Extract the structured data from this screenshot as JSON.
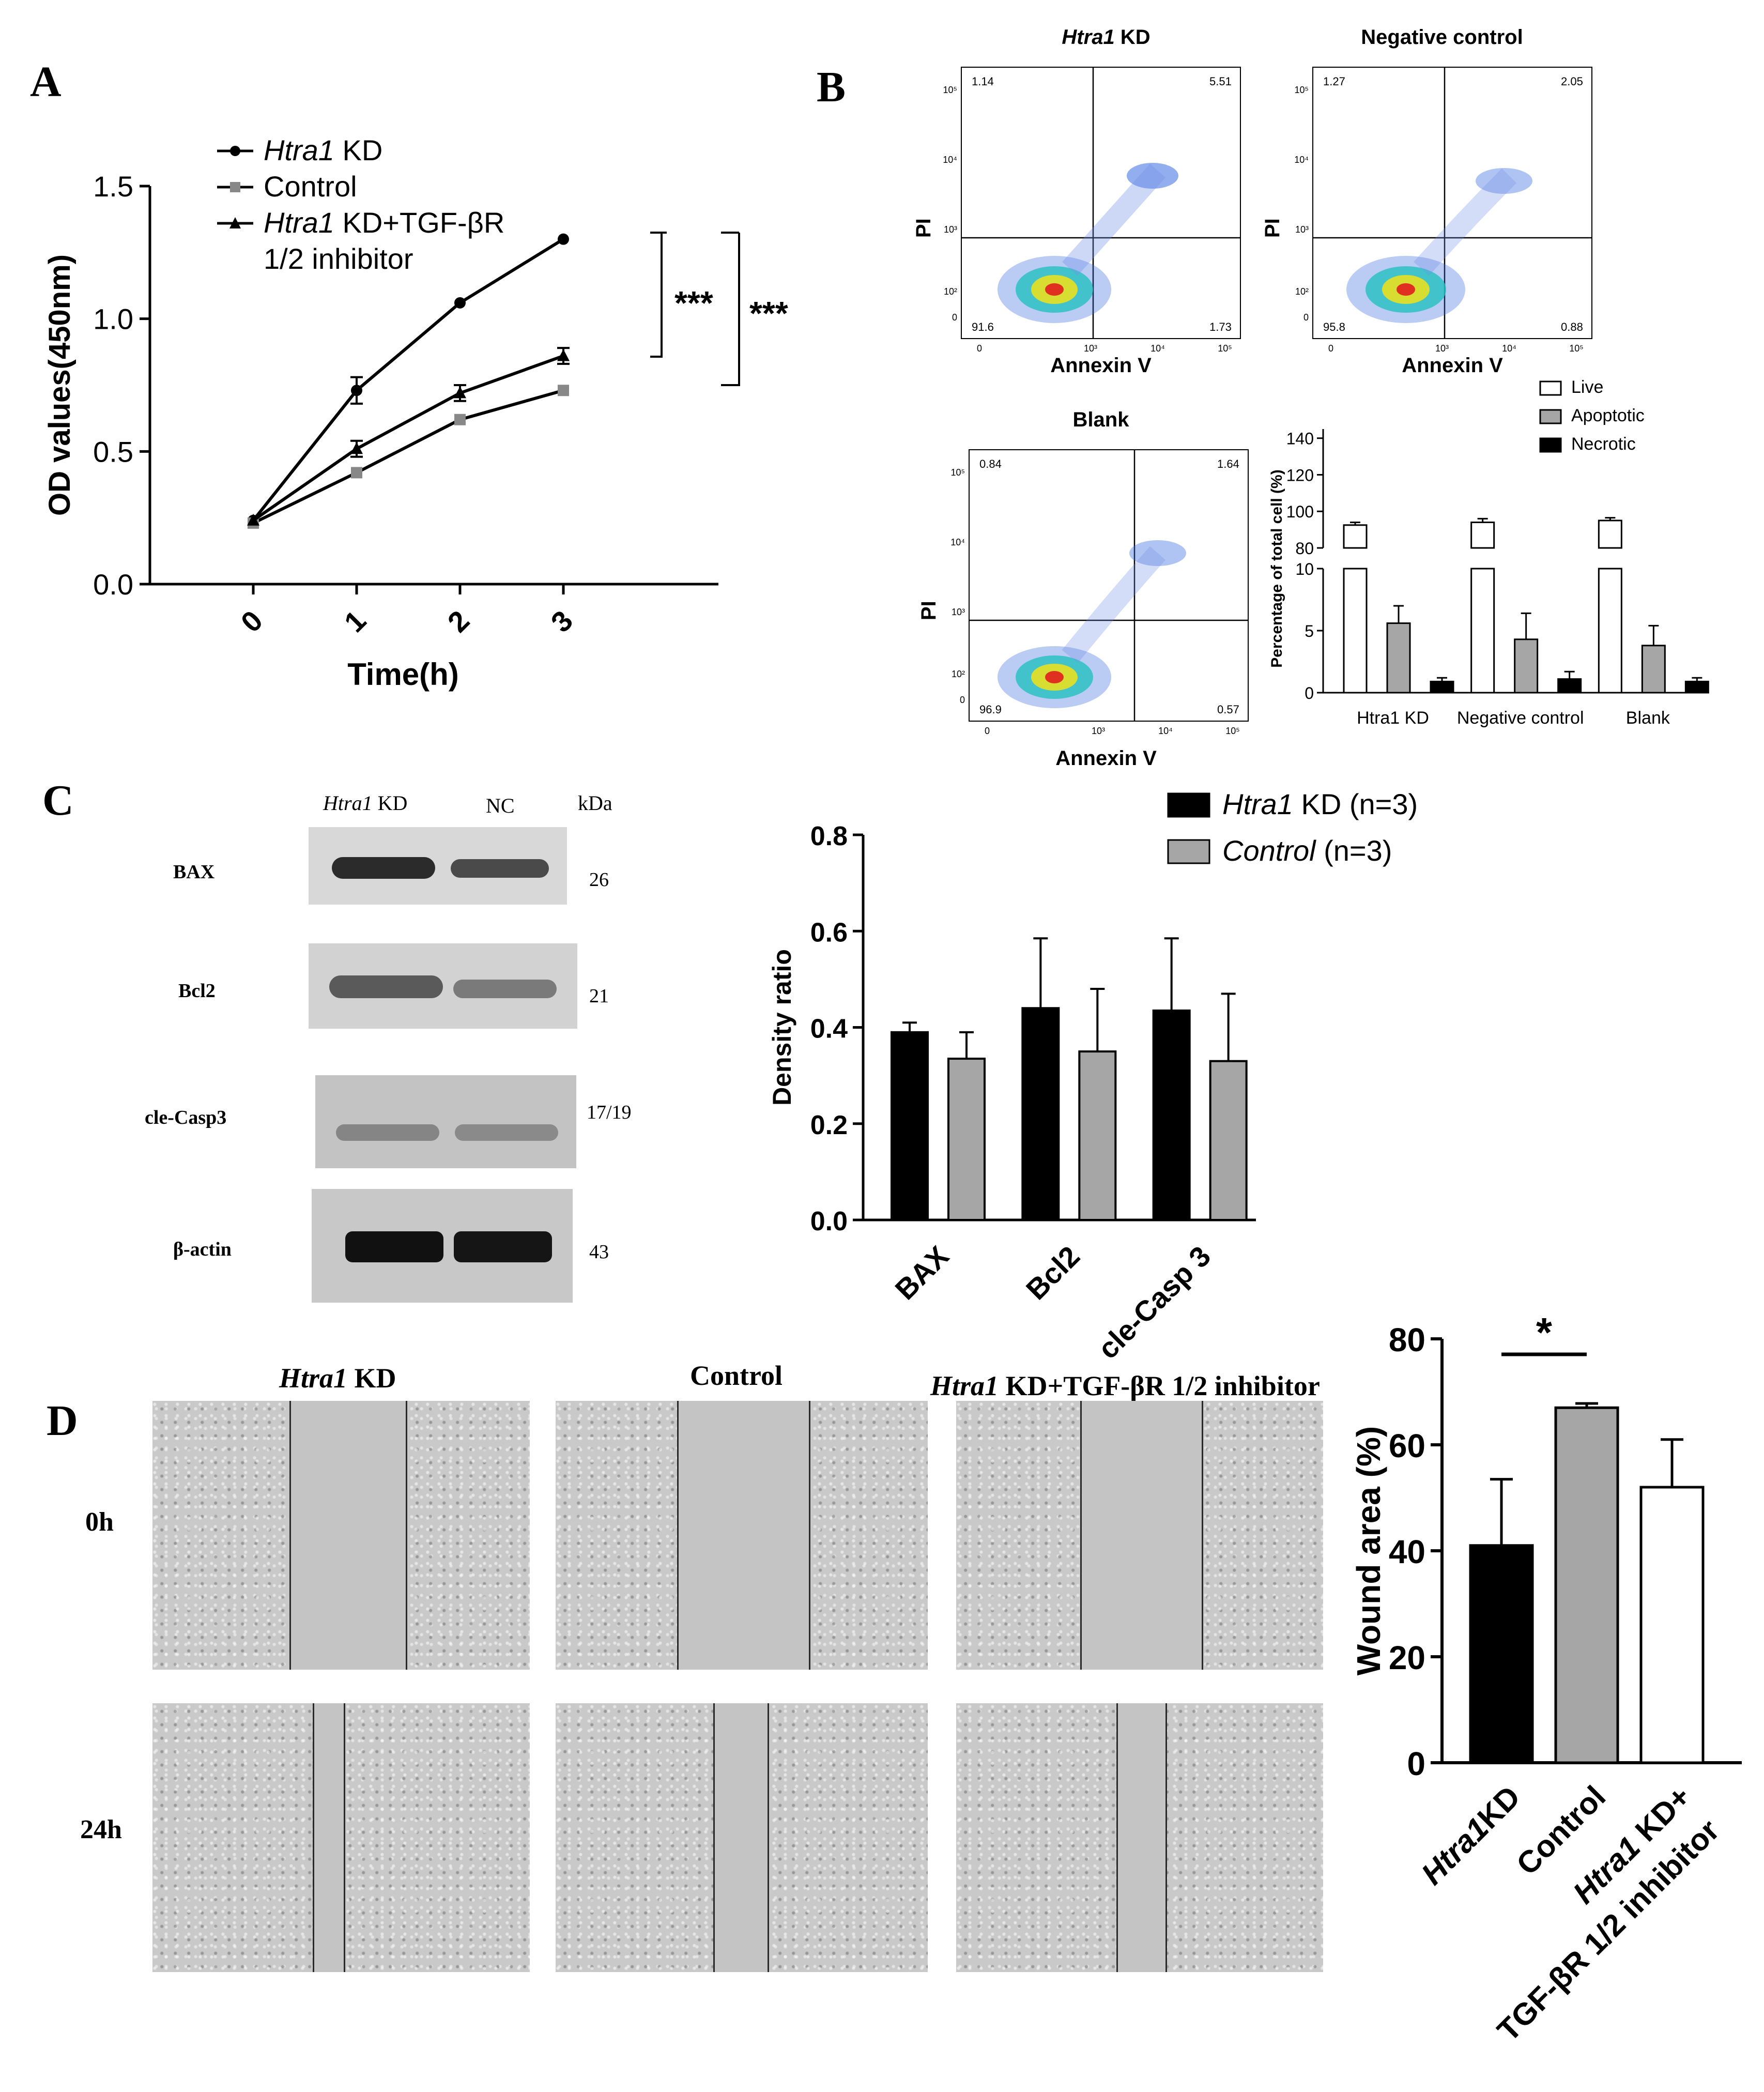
{
  "panels": {
    "a": "A",
    "b": "B",
    "c": "C",
    "d": "D"
  },
  "panel_a": {
    "legend": [
      {
        "italic": "Htra1",
        "rest": " KD",
        "marker": "circle"
      },
      {
        "italic": "",
        "rest": "Control",
        "marker": "square"
      },
      {
        "italic": "Htra1",
        "rest": " KD+TGF-βR",
        "rest2": "1/2 inhibitor",
        "marker": "triangle"
      }
    ],
    "sig": [
      "***",
      "***"
    ]
  },
  "panel_b": {
    "flow": [
      {
        "title_italic": "Htra1",
        "title_rest": " KD",
        "q": [
          "1.14",
          "5.51",
          "91.6",
          "1.73"
        ]
      },
      {
        "title_italic": "",
        "title_rest": "Negative control",
        "q": [
          "1.27",
          "2.05",
          "95.8",
          "0.88"
        ]
      },
      {
        "title_italic": "",
        "title_rest": "Blank",
        "q": [
          "0.84",
          "1.64",
          "96.9",
          "0.57"
        ]
      }
    ],
    "flow_xlabel": "Annexin V",
    "flow_ylabel": "PI",
    "y_ticks": [
      "10⁵",
      "10⁴",
      "10³",
      "10²",
      "0"
    ],
    "x_ticks": [
      "0",
      "10³",
      "10⁴",
      "10⁵"
    ]
  },
  "panel_c": {
    "blot_header": {
      "italic": "Htra1",
      "rest": " KD",
      "nc": "NC",
      "kda": "kDa"
    },
    "blots": [
      {
        "label": "BAX",
        "size": "26"
      },
      {
        "label": "Bcl2",
        "size": "21"
      },
      {
        "label": "cle-Casp3",
        "size": "17/19"
      },
      {
        "label": "β-actin",
        "size": "43"
      }
    ]
  },
  "panel_d": {
    "columns": [
      {
        "italic": "Htra1",
        "rest": " KD"
      },
      {
        "italic": "",
        "rest": "Control"
      },
      {
        "italic": "Htra1",
        "rest": " KD+TGF-βR 1/2 inhibitor"
      }
    ],
    "rows": [
      "0h",
      "24h"
    ],
    "sig": "*"
  },
  "chart_data": [
    {
      "type": "line",
      "panel": "A",
      "xlabel": "Time(h)",
      "ylabel": "OD values(450nm)",
      "x": [
        0,
        1,
        2,
        3
      ],
      "x_tick_labels": [
        "0",
        "1",
        "2",
        "3"
      ],
      "ylim": [
        0,
        1.5
      ],
      "y_ticks": [
        "0.0",
        "0.5",
        "1.0",
        "1.5"
      ],
      "series": [
        {
          "name": "Htra1 KD",
          "values": [
            0.24,
            0.73,
            1.06,
            1.3
          ],
          "err": [
            0.01,
            0.05,
            0.01,
            0.01
          ],
          "color": "#000000"
        },
        {
          "name": "Control",
          "values": [
            0.23,
            0.42,
            0.62,
            0.73
          ],
          "err": [
            0.01,
            0.01,
            0.01,
            0.01
          ],
          "color": "#888888"
        },
        {
          "name": "Htra1 KD+TGF-βR 1/2 inhibitor",
          "values": [
            0.24,
            0.51,
            0.72,
            0.86
          ],
          "err": [
            0.01,
            0.03,
            0.03,
            0.03
          ],
          "color": "#000000"
        }
      ]
    },
    {
      "type": "bar",
      "panel": "B",
      "ylabel": "Percentage of total cell (%)",
      "categories": [
        "Htra1 KD",
        "Negative control",
        "Blank"
      ],
      "y_ticks_lower": [
        "0",
        "5",
        "10"
      ],
      "y_ticks_upper": [
        "80",
        "100",
        "120",
        "140"
      ],
      "series": [
        {
          "name": "Live",
          "values": [
            92.5,
            94.0,
            95.0
          ],
          "err": [
            1.5,
            2.0,
            1.5
          ],
          "color": "#ffffff"
        },
        {
          "name": "Apoptotic",
          "values": [
            5.6,
            4.3,
            3.8
          ],
          "err": [
            1.4,
            2.1,
            1.6
          ],
          "color": "#a6a6a6"
        },
        {
          "name": "Necrotic",
          "values": [
            0.9,
            1.1,
            0.9
          ],
          "err": [
            0.3,
            0.6,
            0.3
          ],
          "color": "#000000"
        }
      ]
    },
    {
      "type": "bar",
      "panel": "C",
      "ylabel": "Density ratio",
      "categories": [
        "BAX",
        "Bcl2",
        "cle-Casp 3"
      ],
      "ylim": [
        0,
        0.8
      ],
      "y_ticks": [
        "0.0",
        "0.2",
        "0.4",
        "0.6",
        "0.8"
      ],
      "series": [
        {
          "name": "Htra1 KD (n=3)",
          "values": [
            0.39,
            0.44,
            0.435
          ],
          "err": [
            0.02,
            0.145,
            0.15
          ],
          "color": "#000000"
        },
        {
          "name": "Control (n=3)",
          "values": [
            0.335,
            0.35,
            0.33
          ],
          "err": [
            0.055,
            0.13,
            0.14
          ],
          "color": "#a6a6a6"
        }
      ]
    },
    {
      "type": "bar",
      "panel": "D",
      "ylabel": "Wound area (%)",
      "categories": [
        "Htra1KD",
        "Control",
        "Htra1 KD+ TGF-βR 1/2 inhibitor"
      ],
      "ylim": [
        0,
        80
      ],
      "y_ticks": [
        "0",
        "20",
        "40",
        "60",
        "80"
      ],
      "values": [
        41,
        67,
        52
      ],
      "err": [
        12.5,
        0.8,
        9
      ],
      "colors": [
        "#000000",
        "#a6a6a6",
        "#ffffff"
      ]
    }
  ]
}
